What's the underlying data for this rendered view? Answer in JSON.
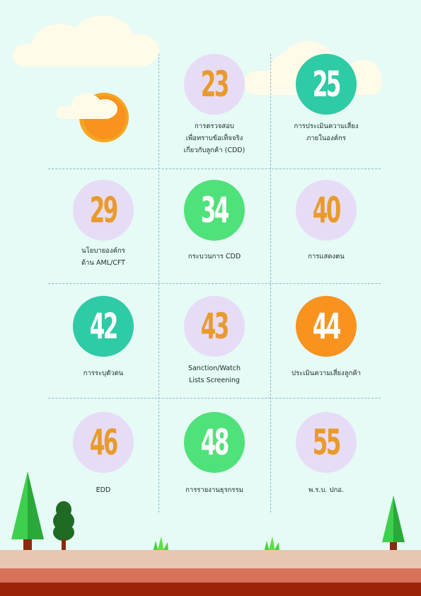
{
  "items": [
    {
      "number": "23",
      "label_lines": [
        "การตรวจสอบ",
        "เพื่อทราบข้อเท็จจริง",
        "เกี่ยวกับลูกค้า (CDD)"
      ],
      "color": "lavender"
    },
    {
      "number": "25",
      "label_lines": [
        "การประเมินความเสี่ยง",
        "ภายในองค์กร"
      ],
      "color": "teal"
    },
    {
      "number": "29",
      "label_lines": [
        "นโยบายองค์กร",
        "ด้าน AML/CFT"
      ],
      "color": "lavender"
    },
    {
      "number": "34",
      "label_lines": [
        "กระบวนการ CDD"
      ],
      "color": "green"
    },
    {
      "number": "40",
      "label_lines": [
        "การแสดงตน"
      ],
      "color": "lavender"
    },
    {
      "number": "42",
      "label_lines": [
        "การระบุตัวตน"
      ],
      "color": "teal"
    },
    {
      "number": "43",
      "label_lines": [
        "Sanction/Watch",
        "Lists Screening"
      ],
      "color": "lavender"
    },
    {
      "number": "44",
      "label_lines": [
        "ประเมินความเสี่ยงลูกค้า"
      ],
      "color": "orange"
    },
    {
      "number": "46",
      "label_lines": [
        "EDD"
      ],
      "color": "lavender"
    },
    {
      "number": "48",
      "label_lines": [
        "การรายงานธุรกรรม"
      ],
      "color": "green"
    },
    {
      "number": "55",
      "label_lines": [
        "พ.ร.บ. ปกอ."
      ],
      "color": "lavender"
    }
  ],
  "colors": {
    "lavender": "#e7dcf6",
    "teal": "#2fcaa6",
    "green": "#4fe27a",
    "orange": "#f7931e",
    "background": "#e6faf6"
  },
  "decor": {
    "sun": "sun-icon",
    "clouds": "cloud-icon",
    "trees": "tree-icon",
    "grass": "grass-icon"
  }
}
